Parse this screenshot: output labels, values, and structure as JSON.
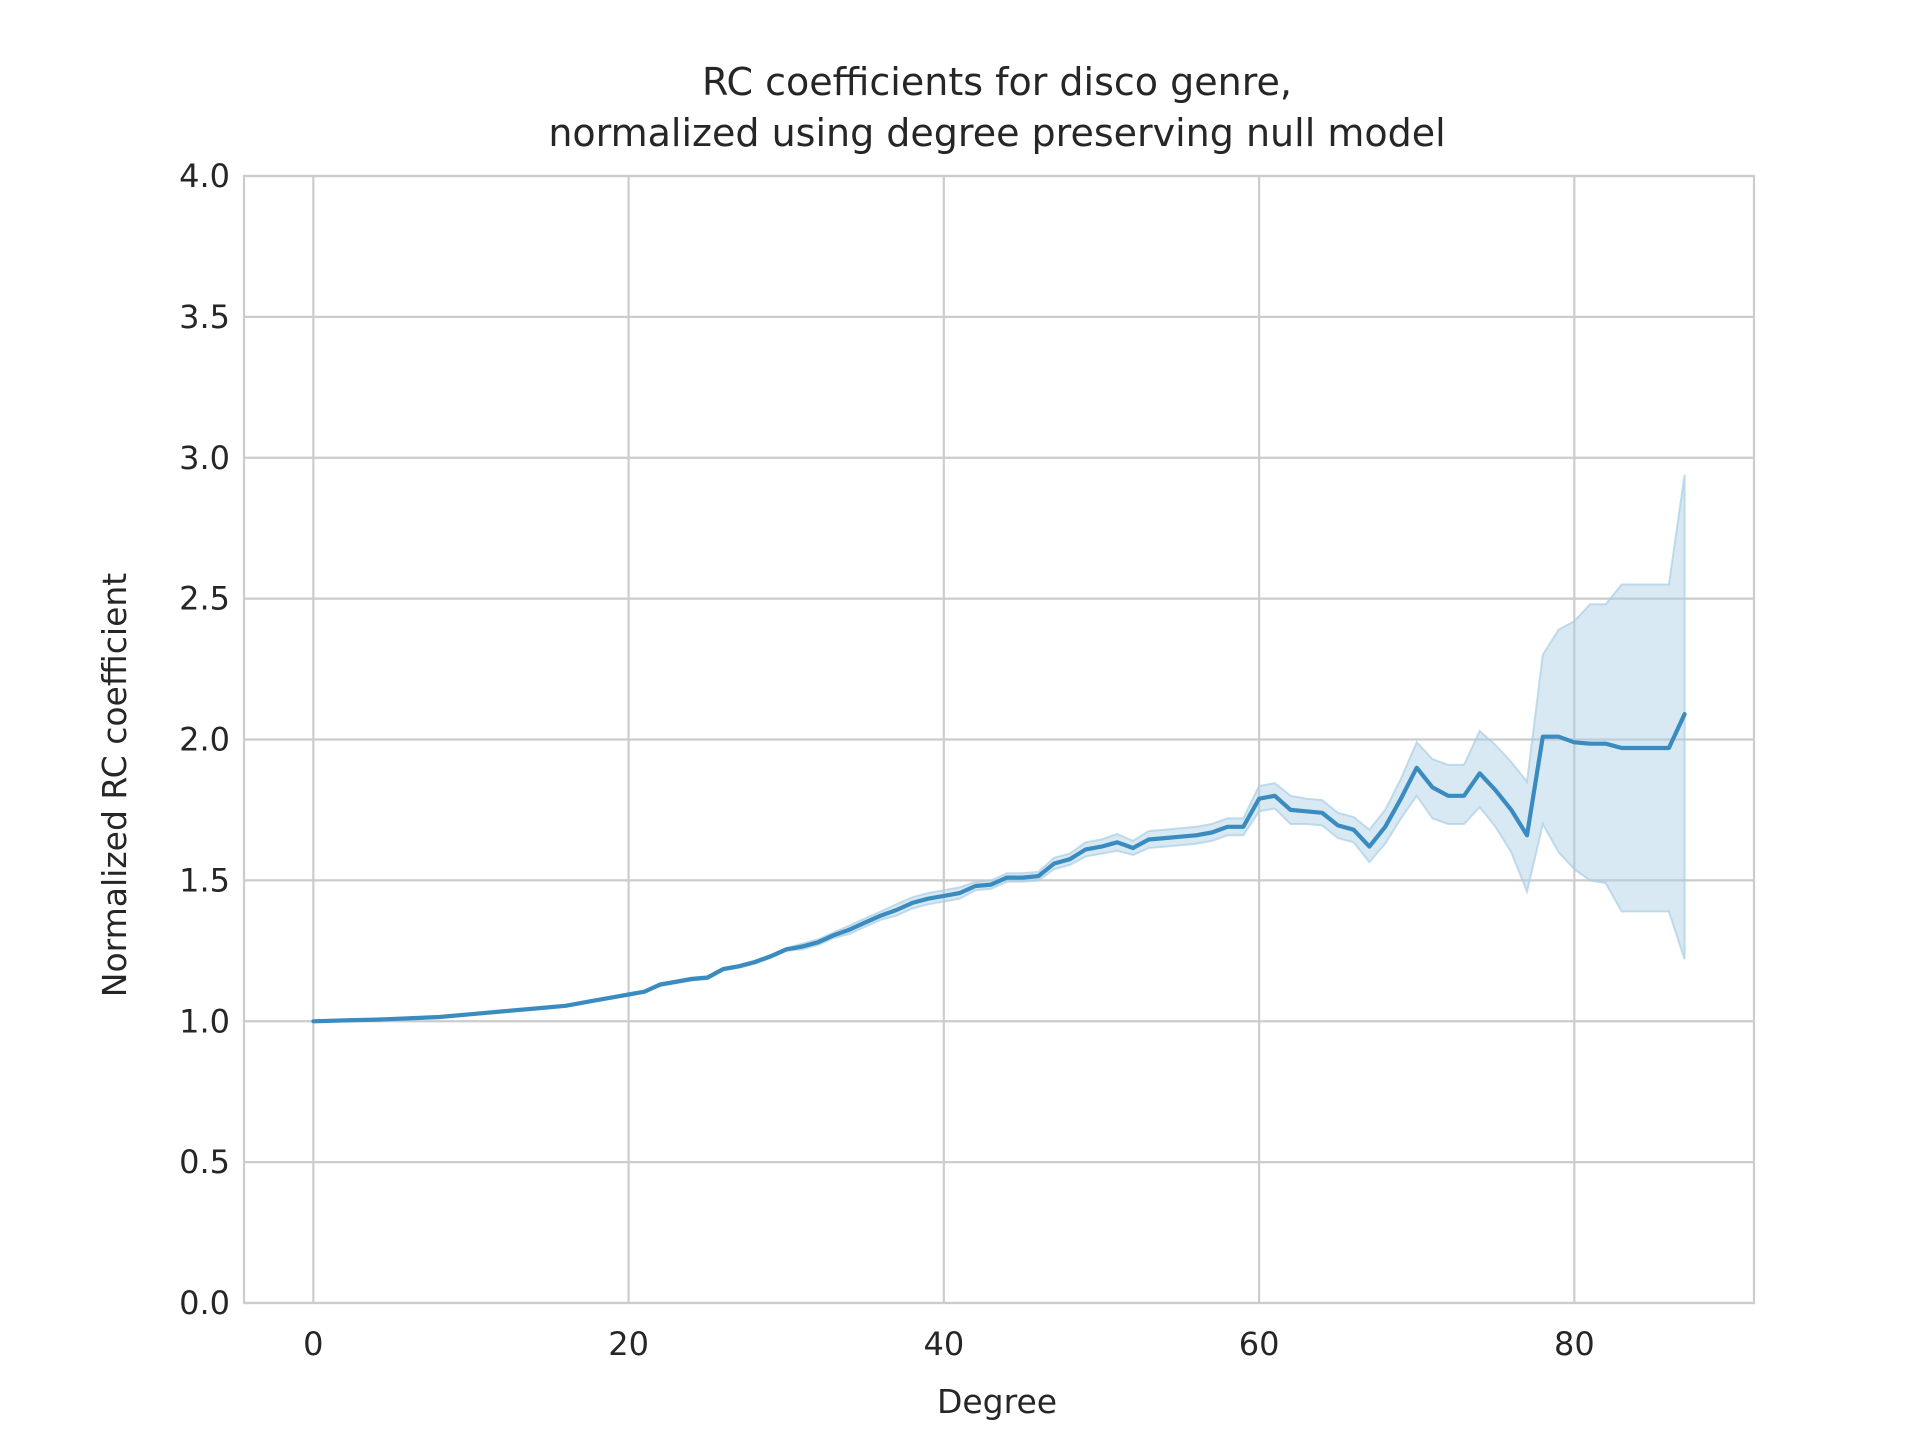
{
  "chart_data": {
    "type": "line",
    "title_lines": [
      "RC coefficients for disco genre,",
      "normalized using degree preserving null model"
    ],
    "xlabel": "Degree",
    "ylabel": "Normalized RC coefficient",
    "xlim": [
      -4.4,
      91.4
    ],
    "ylim": [
      0.0,
      4.0
    ],
    "xticks": [
      0,
      20,
      40,
      60,
      80
    ],
    "yticks": [
      0.0,
      0.5,
      1.0,
      1.5,
      2.0,
      2.5,
      3.0,
      3.5,
      4.0
    ],
    "xtick_labels": [
      "0",
      "20",
      "40",
      "60",
      "80"
    ],
    "ytick_labels": [
      "0.0",
      "0.5",
      "1.0",
      "1.5",
      "2.0",
      "2.5",
      "3.0",
      "3.5",
      "4.0"
    ],
    "grid": true,
    "legend": "none",
    "colors": {
      "line": "#3a8bc0",
      "band": "#a9cfe4",
      "grid": "#cccccc"
    },
    "series": [
      {
        "x": [
          0,
          2,
          4,
          6,
          8,
          10,
          12,
          14,
          16,
          18,
          19,
          20,
          21,
          22,
          23,
          24,
          25,
          26,
          27,
          28,
          29,
          30,
          31,
          32,
          33,
          34,
          35,
          36,
          37,
          38,
          39,
          40,
          41,
          42,
          43,
          44,
          45,
          46,
          47,
          48,
          49,
          50,
          51,
          52,
          53,
          54,
          55,
          56,
          57,
          58,
          59,
          60,
          61,
          62,
          63,
          64,
          65,
          66,
          67,
          68,
          69,
          70,
          71,
          72,
          73,
          74,
          75,
          76,
          77,
          78,
          79,
          80,
          81,
          82,
          83,
          84,
          85,
          86,
          87
        ],
        "y": [
          1.0,
          1.003,
          1.006,
          1.01,
          1.015,
          1.025,
          1.035,
          1.045,
          1.055,
          1.075,
          1.085,
          1.095,
          1.105,
          1.13,
          1.14,
          1.15,
          1.155,
          1.185,
          1.195,
          1.21,
          1.23,
          1.255,
          1.265,
          1.28,
          1.305,
          1.325,
          1.35,
          1.375,
          1.395,
          1.42,
          1.435,
          1.445,
          1.455,
          1.48,
          1.485,
          1.51,
          1.51,
          1.515,
          1.56,
          1.575,
          1.61,
          1.62,
          1.635,
          1.615,
          1.645,
          1.65,
          1.655,
          1.66,
          1.67,
          1.69,
          1.69,
          1.79,
          1.8,
          1.75,
          1.745,
          1.74,
          1.695,
          1.68,
          1.62,
          1.69,
          1.79,
          1.9,
          1.83,
          1.8,
          1.8,
          1.88,
          1.82,
          1.75,
          1.66,
          2.01,
          2.01,
          1.99,
          1.985,
          1.985,
          1.97,
          1.97,
          1.97,
          1.97,
          2.09
        ],
        "lower": [
          1.0,
          1.003,
          1.006,
          1.01,
          1.015,
          1.025,
          1.035,
          1.045,
          1.055,
          1.075,
          1.085,
          1.095,
          1.105,
          1.125,
          1.135,
          1.145,
          1.15,
          1.18,
          1.19,
          1.205,
          1.225,
          1.25,
          1.255,
          1.27,
          1.295,
          1.31,
          1.335,
          1.36,
          1.375,
          1.4,
          1.415,
          1.425,
          1.435,
          1.465,
          1.47,
          1.495,
          1.495,
          1.5,
          1.54,
          1.555,
          1.585,
          1.595,
          1.605,
          1.59,
          1.615,
          1.62,
          1.625,
          1.63,
          1.64,
          1.66,
          1.66,
          1.745,
          1.755,
          1.7,
          1.7,
          1.695,
          1.65,
          1.635,
          1.565,
          1.63,
          1.72,
          1.8,
          1.72,
          1.7,
          1.7,
          1.76,
          1.69,
          1.6,
          1.46,
          1.7,
          1.6,
          1.54,
          1.5,
          1.49,
          1.39,
          1.39,
          1.39,
          1.39,
          1.22
        ],
        "upper": [
          1.0,
          1.003,
          1.006,
          1.01,
          1.015,
          1.025,
          1.035,
          1.045,
          1.055,
          1.075,
          1.085,
          1.095,
          1.105,
          1.135,
          1.145,
          1.155,
          1.16,
          1.19,
          1.2,
          1.215,
          1.235,
          1.26,
          1.275,
          1.29,
          1.315,
          1.34,
          1.365,
          1.39,
          1.415,
          1.44,
          1.455,
          1.465,
          1.475,
          1.495,
          1.5,
          1.525,
          1.525,
          1.53,
          1.58,
          1.595,
          1.635,
          1.645,
          1.665,
          1.64,
          1.675,
          1.68,
          1.685,
          1.69,
          1.7,
          1.72,
          1.72,
          1.835,
          1.845,
          1.8,
          1.79,
          1.785,
          1.74,
          1.725,
          1.68,
          1.75,
          1.86,
          1.99,
          1.93,
          1.91,
          1.91,
          2.03,
          1.98,
          1.92,
          1.85,
          2.3,
          2.39,
          2.42,
          2.48,
          2.48,
          2.55,
          2.55,
          2.55,
          2.55,
          2.94
        ]
      }
    ]
  }
}
